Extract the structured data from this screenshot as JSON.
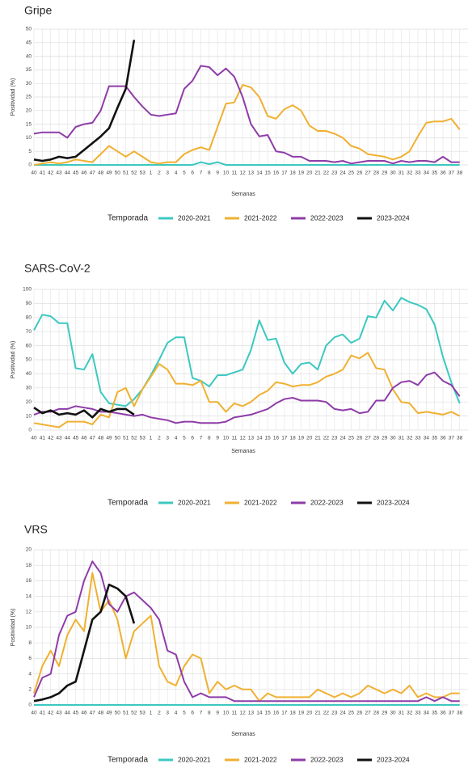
{
  "chart_data": [
    {
      "type": "line",
      "title": "Gripe",
      "y_label": "Positividad (%)",
      "x_label": "Semanas",
      "legend_title": "Temporada",
      "grid": true,
      "legend": "bottom",
      "categories": [
        "40",
        "41",
        "42",
        "43",
        "44",
        "45",
        "46",
        "47",
        "48",
        "49",
        "50",
        "51",
        "52",
        "53",
        "1",
        "2",
        "3",
        "4",
        "5",
        "6",
        "7",
        "8",
        "9",
        "10",
        "11",
        "12",
        "13",
        "14",
        "15",
        "16",
        "17",
        "18",
        "19",
        "20",
        "21",
        "22",
        "23",
        "24",
        "25",
        "26",
        "27",
        "28",
        "29",
        "30",
        "31",
        "32",
        "33",
        "34",
        "35",
        "36",
        "37",
        "38"
      ],
      "ylim": [
        0,
        50
      ],
      "yticks": [
        0,
        5,
        10,
        15,
        20,
        25,
        30,
        35,
        40,
        45,
        50
      ],
      "series": [
        {
          "name": "2020-2021",
          "color": "#3cc8c0",
          "values": [
            0,
            0,
            0,
            0,
            0,
            0,
            0,
            0,
            0,
            0,
            0,
            0,
            0,
            0,
            0,
            0,
            0,
            0,
            0,
            0,
            1,
            0.3,
            1,
            0,
            0,
            0,
            0,
            0,
            0,
            0,
            0,
            0,
            0,
            0,
            0,
            0,
            0,
            0,
            0,
            0,
            0,
            0,
            0,
            0,
            0,
            0,
            0,
            0,
            0,
            0,
            0,
            0
          ]
        },
        {
          "name": "2021-2022",
          "color": "#f0b030",
          "values": [
            0,
            0.5,
            1,
            0.5,
            1,
            2,
            1.5,
            1,
            4,
            7,
            5,
            3,
            5,
            3,
            1,
            0.5,
            1,
            1,
            4,
            5.5,
            6.5,
            5.5,
            14,
            22.5,
            23,
            29.5,
            28.5,
            25,
            18,
            17,
            20.5,
            22,
            20,
            14.5,
            12.5,
            12.5,
            11.5,
            10,
            7,
            6,
            4,
            3.5,
            3,
            2,
            3,
            5,
            10.5,
            15.5,
            16,
            16,
            17,
            13
          ]
        },
        {
          "name": "2022-2023",
          "color": "#8e3ca8",
          "values": [
            11.5,
            12,
            12,
            12,
            10,
            14,
            15,
            15.5,
            20,
            29,
            29,
            29,
            25,
            21.5,
            18.5,
            18,
            18.5,
            19,
            28,
            31,
            36.5,
            36,
            33,
            35.5,
            32.5,
            25,
            15,
            10.5,
            11,
            5,
            4.5,
            3,
            3,
            1.5,
            1.5,
            1.5,
            1,
            1.5,
            0.5,
            1,
            1.5,
            1.5,
            1.5,
            0.5,
            1.5,
            1,
            1.5,
            1.5,
            1,
            3,
            1,
            1
          ]
        },
        {
          "name": "2023-2024",
          "color": "#111111",
          "values": [
            2,
            1.5,
            2,
            3,
            2.5,
            3,
            5.5,
            8,
            10.5,
            13.5,
            21,
            28,
            46,
            null,
            null,
            null,
            null,
            null,
            null,
            null,
            null,
            null,
            null,
            null,
            null,
            null,
            null,
            null,
            null,
            null,
            null,
            null,
            null,
            null,
            null,
            null,
            null,
            null,
            null,
            null,
            null,
            null,
            null,
            null,
            null,
            null,
            null,
            null,
            null,
            null,
            null,
            null
          ]
        }
      ]
    },
    {
      "type": "line",
      "title": "SARS-CoV-2",
      "y_label": "Positividad (%)",
      "x_label": "Semanas",
      "legend_title": "Temporada",
      "grid": true,
      "legend": "bottom",
      "categories": [
        "40",
        "41",
        "42",
        "43",
        "44",
        "45",
        "46",
        "47",
        "48",
        "49",
        "50",
        "51",
        "52",
        "53",
        "1",
        "2",
        "3",
        "4",
        "5",
        "6",
        "7",
        "8",
        "9",
        "10",
        "11",
        "12",
        "13",
        "14",
        "15",
        "16",
        "17",
        "18",
        "19",
        "20",
        "21",
        "22",
        "23",
        "24",
        "25",
        "26",
        "27",
        "28",
        "29",
        "30",
        "31",
        "32",
        "33",
        "34",
        "35",
        "36",
        "37",
        "38"
      ],
      "ylim": [
        0,
        100
      ],
      "yticks": [
        0,
        10,
        20,
        30,
        40,
        50,
        60,
        70,
        80,
        90,
        100
      ],
      "series": [
        {
          "name": "2020-2021",
          "color": "#3cc8c0",
          "values": [
            71,
            82,
            81,
            76,
            76,
            44,
            43,
            54,
            27,
            19,
            18,
            17,
            22,
            29,
            39,
            50,
            62,
            66,
            66,
            37,
            35,
            31,
            39,
            39,
            41,
            43,
            57,
            78,
            64,
            65,
            48,
            40,
            47,
            48,
            43,
            60,
            66,
            68,
            62,
            65,
            81,
            80,
            92,
            85,
            94,
            91,
            89,
            86,
            75,
            52,
            34,
            19
          ]
        },
        {
          "name": "2021-2022",
          "color": "#f0b030",
          "values": [
            5,
            4,
            3,
            2,
            6,
            6,
            6,
            4,
            11,
            9,
            27,
            30,
            17,
            29,
            38,
            47,
            43,
            33,
            33,
            32,
            35,
            20,
            20,
            13,
            19,
            17,
            20,
            25,
            28,
            34,
            33,
            31,
            32,
            32,
            34,
            38,
            40,
            43,
            53,
            51,
            55,
            44,
            43,
            29,
            20,
            19,
            12,
            13,
            12,
            11,
            13,
            10
          ]
        },
        {
          "name": "2022-2023",
          "color": "#8e3ca8",
          "values": [
            11,
            13,
            13,
            15,
            15,
            17,
            16,
            15,
            13,
            13,
            12,
            11,
            10,
            11,
            9,
            8,
            7,
            5,
            6,
            6,
            5,
            5,
            5,
            6,
            9,
            10,
            11,
            13,
            15,
            19,
            22,
            23,
            21,
            21,
            21,
            20,
            15,
            14,
            15,
            12,
            13,
            21,
            21,
            30,
            34,
            35,
            32,
            39,
            41,
            35,
            32,
            24
          ]
        },
        {
          "name": "2023-2024",
          "color": "#111111",
          "values": [
            16,
            12,
            14,
            11,
            12,
            11,
            14,
            9,
            15,
            13,
            15,
            15,
            11,
            null,
            null,
            null,
            null,
            null,
            null,
            null,
            null,
            null,
            null,
            null,
            null,
            null,
            null,
            null,
            null,
            null,
            null,
            null,
            null,
            null,
            null,
            null,
            null,
            null,
            null,
            null,
            null,
            null,
            null,
            null,
            null,
            null,
            null,
            null,
            null,
            null,
            null,
            null
          ]
        }
      ]
    },
    {
      "type": "line",
      "title": "VRS",
      "y_label": "Positividad (%)",
      "x_label": "Semanas",
      "legend_title": "Temporada",
      "grid": true,
      "legend": "bottom",
      "categories": [
        "40",
        "41",
        "42",
        "43",
        "44",
        "45",
        "46",
        "47",
        "48",
        "49",
        "50",
        "51",
        "52",
        "53",
        "1",
        "2",
        "3",
        "4",
        "5",
        "6",
        "7",
        "8",
        "9",
        "10",
        "11",
        "12",
        "13",
        "14",
        "15",
        "16",
        "17",
        "18",
        "19",
        "20",
        "21",
        "22",
        "23",
        "24",
        "25",
        "26",
        "27",
        "28",
        "29",
        "30",
        "31",
        "32",
        "33",
        "34",
        "35",
        "36",
        "37",
        "38"
      ],
      "ylim": [
        0,
        20
      ],
      "yticks": [
        0,
        2,
        4,
        6,
        8,
        10,
        12,
        14,
        16,
        18,
        20
      ],
      "series": [
        {
          "name": "2020-2021",
          "color": "#3cc8c0",
          "values": [
            0,
            0,
            0,
            0,
            0,
            0,
            0,
            0,
            0,
            0,
            0,
            0,
            0,
            0,
            0,
            0,
            0,
            0,
            0,
            0,
            0,
            0,
            0,
            0,
            0,
            0,
            0,
            0,
            0,
            0,
            0,
            0,
            0,
            0,
            0,
            0,
            0,
            0,
            0,
            0,
            0,
            0,
            0,
            0,
            0,
            0,
            0,
            0,
            0,
            0,
            0,
            0
          ]
        },
        {
          "name": "2021-2022",
          "color": "#f0b030",
          "values": [
            1.5,
            5,
            7,
            5,
            9,
            11,
            9.5,
            17,
            12,
            13.5,
            11,
            6,
            9.5,
            10.5,
            11.5,
            5,
            3,
            2.5,
            5,
            6.5,
            6,
            1.5,
            3,
            2,
            2.5,
            2,
            2,
            0.5,
            1.5,
            1,
            1,
            1,
            1,
            1,
            2,
            1.5,
            1,
            1.5,
            1,
            1.5,
            2.5,
            2,
            1.5,
            2,
            1.5,
            2.5,
            1,
            1.5,
            1,
            1,
            1.5,
            1.5
          ]
        },
        {
          "name": "2022-2023",
          "color": "#8e3ca8",
          "values": [
            1,
            3.5,
            4,
            9,
            11.5,
            12,
            16,
            18.5,
            17,
            13,
            12,
            14,
            14.5,
            13.5,
            12.5,
            11,
            7,
            6.5,
            3,
            1,
            1.5,
            1,
            1,
            1,
            0.5,
            0.5,
            0.5,
            0.5,
            0.5,
            0.5,
            0.5,
            0.5,
            0.5,
            0.5,
            0.5,
            0.5,
            0.5,
            0.5,
            0.5,
            0.5,
            0.5,
            0.5,
            0.5,
            0.5,
            0.5,
            0.5,
            0.5,
            1,
            0.5,
            1,
            0.5,
            0.5
          ]
        },
        {
          "name": "2023-2024",
          "color": "#111111",
          "values": [
            0.5,
            0.7,
            1,
            1.5,
            2.5,
            3,
            7,
            11,
            12,
            15.5,
            15,
            14,
            10.5,
            null,
            null,
            null,
            null,
            null,
            null,
            null,
            null,
            null,
            null,
            null,
            null,
            null,
            null,
            null,
            null,
            null,
            null,
            null,
            null,
            null,
            null,
            null,
            null,
            null,
            null,
            null,
            null,
            null,
            null,
            null,
            null,
            null,
            null,
            null,
            null,
            null,
            null,
            null
          ]
        }
      ]
    }
  ]
}
